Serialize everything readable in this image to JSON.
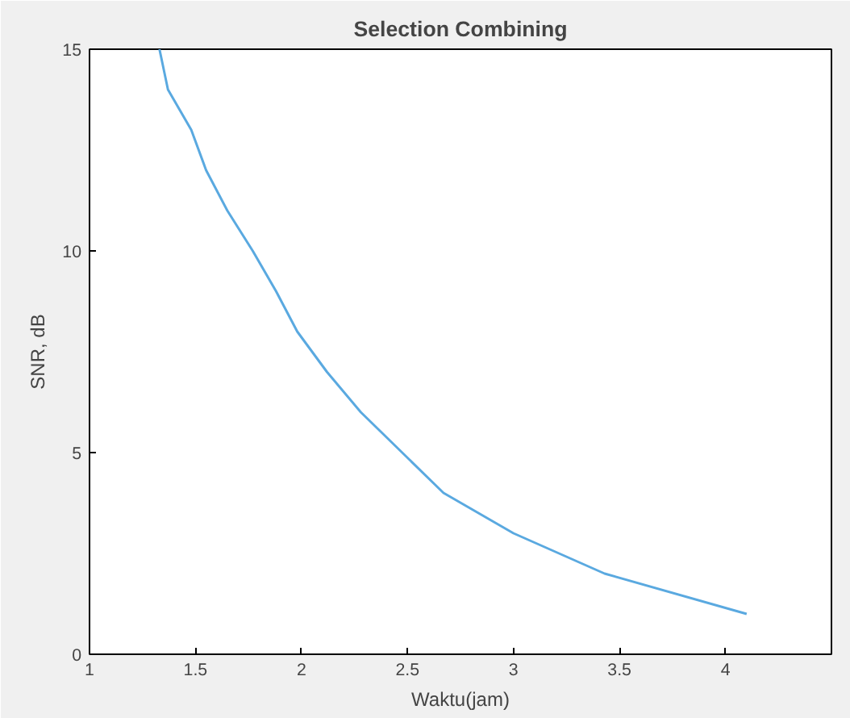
{
  "chart_data": {
    "type": "line",
    "title": "Selection Combining",
    "xlabel": "Waktu(jam)",
    "ylabel": "SNR, dB",
    "x": [
      1.33,
      1.37,
      1.48,
      1.55,
      1.65,
      1.77,
      1.88,
      1.98,
      2.12,
      2.28,
      2.67,
      3.0,
      3.43,
      4.1
    ],
    "series": [
      {
        "color": "#5aa9e0",
        "values": [
          15,
          14,
          13,
          12,
          11,
          10,
          9,
          8,
          7,
          6,
          4,
          3,
          2,
          1
        ]
      }
    ],
    "xlim": [
      1,
      4.5
    ],
    "ylim": [
      0,
      15
    ],
    "xticks": [
      1,
      1.5,
      2,
      2.5,
      3,
      3.5,
      4
    ],
    "yticks": [
      0,
      5,
      10,
      15
    ],
    "grid": false,
    "line_style": "solid",
    "marker": "none"
  }
}
